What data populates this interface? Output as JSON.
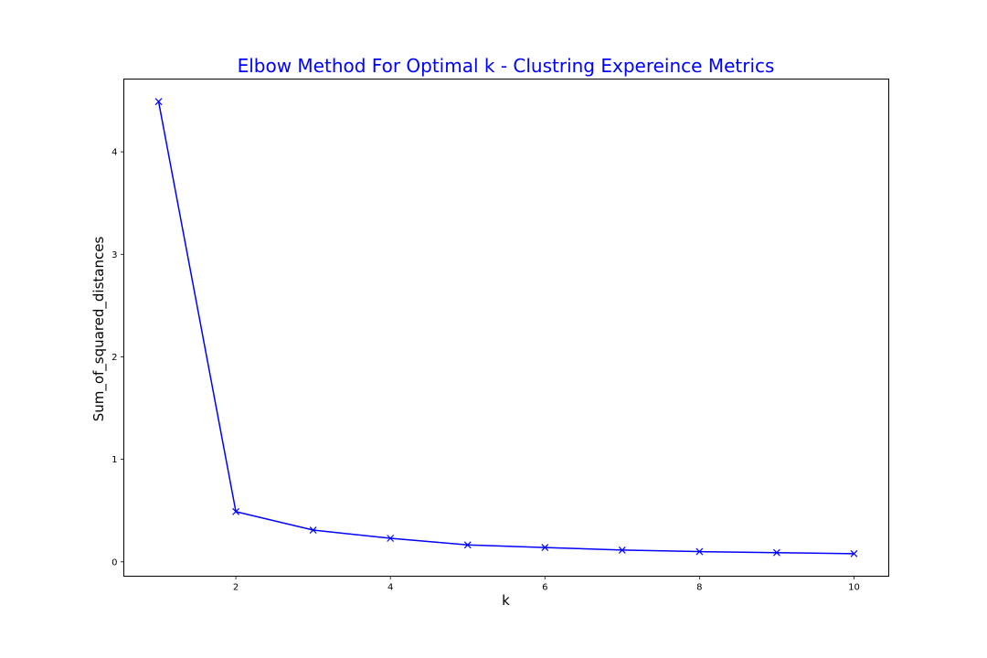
{
  "chart_data": {
    "type": "line",
    "title": "Elbow Method For Optimal k - Clustring Expereince Metrics",
    "xlabel": "k",
    "ylabel": "Sum_of_squared_distances",
    "x": [
      1,
      2,
      3,
      4,
      5,
      6,
      7,
      8,
      9,
      10
    ],
    "series": [
      {
        "values": [
          4.49,
          0.49,
          0.31,
          0.23,
          0.165,
          0.14,
          0.115,
          0.1,
          0.09,
          0.08
        ],
        "color": "#0000ff",
        "marker": "x"
      }
    ],
    "xlim": [
      0.55,
      10.45
    ],
    "ylim": [
      -0.14,
      4.71
    ],
    "xticks": [
      2,
      4,
      6,
      8,
      10
    ],
    "xtick_labels": [
      "2",
      "4",
      "6",
      "8",
      "10"
    ],
    "yticks": [
      0,
      1,
      2,
      3,
      4
    ],
    "ytick_labels": [
      "0",
      "1",
      "2",
      "3",
      "4"
    ],
    "grid": false,
    "title_color": "#0000ff"
  }
}
